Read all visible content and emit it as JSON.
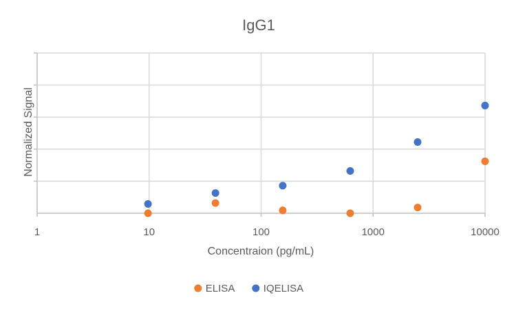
{
  "chart_data": {
    "type": "scatter",
    "title": "IgG1",
    "xlabel": "Concentraion (pg/mL)",
    "ylabel": "Normalized Signal",
    "x_scale": "log",
    "xlim": [
      1,
      10000
    ],
    "x_ticks": [
      "1",
      "10",
      "100",
      "1000",
      "10000"
    ],
    "ylim": [
      0,
      5
    ],
    "y_tick_labels_visible": false,
    "grid": true,
    "legend_position": "bottom",
    "series": [
      {
        "name": "ELISA",
        "color": "#ED7D31",
        "points": [
          {
            "x": 9.77,
            "y": 0.0
          },
          {
            "x": 39.1,
            "y": 0.32
          },
          {
            "x": 156,
            "y": 0.09
          },
          {
            "x": 625,
            "y": 0.0
          },
          {
            "x": 2500,
            "y": 0.18
          },
          {
            "x": 10000,
            "y": 1.62
          }
        ]
      },
      {
        "name": "IQELISA",
        "color": "#4472C4",
        "points": [
          {
            "x": 9.77,
            "y": 0.29
          },
          {
            "x": 39.1,
            "y": 0.63
          },
          {
            "x": 156,
            "y": 0.86
          },
          {
            "x": 625,
            "y": 1.32
          },
          {
            "x": 2500,
            "y": 2.22
          },
          {
            "x": 10000,
            "y": 3.36
          }
        ]
      }
    ]
  }
}
